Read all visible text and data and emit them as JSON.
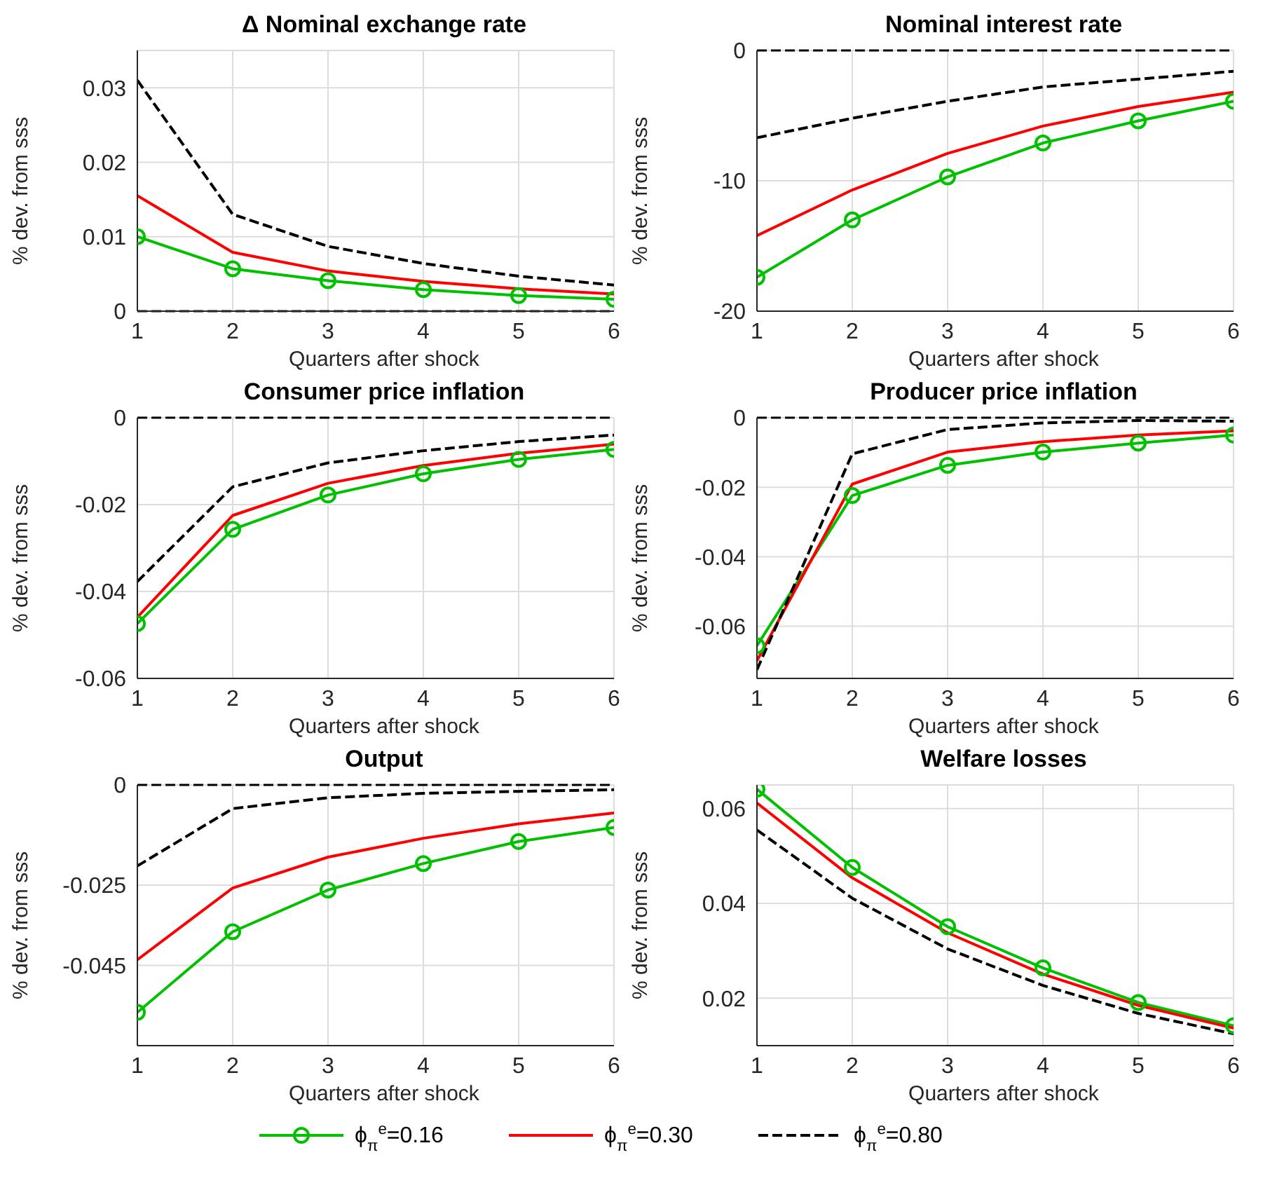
{
  "chart_data": [
    {
      "type": "line",
      "title": "Δ Nominal exchange rate",
      "xlabel": "Quarters after shock",
      "ylabel": "% dev. from sss",
      "x": [
        1,
        2,
        3,
        4,
        5,
        6
      ],
      "xlim": [
        1,
        6
      ],
      "xticks": [
        1,
        2,
        3,
        4,
        5,
        6
      ],
      "ylim": [
        0,
        0.035
      ],
      "yticks": [
        0,
        0.01,
        0.02,
        0.03
      ],
      "grid": true,
      "ref_lines": [
        {
          "axis": "y",
          "value": 0,
          "color": "#000000",
          "line_style": "dashed"
        }
      ],
      "series": [
        {
          "color": "#00c000",
          "marker": "circle",
          "line_style": "solid",
          "values": [
            0.01,
            0.0057,
            0.0041,
            0.0029,
            0.0021,
            0.0016
          ]
        },
        {
          "color": "#ff0000",
          "marker": "none",
          "line_style": "solid",
          "values": [
            0.0155,
            0.0079,
            0.0054,
            0.004,
            0.003,
            0.0023
          ]
        },
        {
          "color": "#000000",
          "marker": "none",
          "line_style": "dashed",
          "values": [
            0.031,
            0.013,
            0.0087,
            0.0064,
            0.0047,
            0.0035
          ]
        }
      ]
    },
    {
      "type": "line",
      "title": "Nominal interest rate",
      "xlabel": "Quarters after shock",
      "ylabel": "% dev. from sss",
      "x": [
        1,
        2,
        3,
        4,
        5,
        6
      ],
      "xlim": [
        1,
        6
      ],
      "xticks": [
        1,
        2,
        3,
        4,
        5,
        6
      ],
      "ylim": [
        -20,
        0
      ],
      "yticks": [
        -20,
        -10,
        0
      ],
      "grid": true,
      "ref_lines": [
        {
          "axis": "y",
          "value": 0,
          "color": "#000000",
          "line_style": "dashed"
        }
      ],
      "series": [
        {
          "color": "#00c000",
          "marker": "circle",
          "line_style": "solid",
          "values": [
            -17.4,
            -13.0,
            -9.7,
            -7.1,
            -5.4,
            -3.9
          ]
        },
        {
          "color": "#ff0000",
          "marker": "none",
          "line_style": "solid",
          "values": [
            -14.2,
            -10.7,
            -7.9,
            -5.8,
            -4.3,
            -3.2
          ]
        },
        {
          "color": "#000000",
          "marker": "none",
          "line_style": "dashed",
          "values": [
            -6.7,
            -5.2,
            -3.9,
            -2.8,
            -2.2,
            -1.6
          ]
        }
      ]
    },
    {
      "type": "line",
      "title": "Consumer price inflation",
      "xlabel": "Quarters after shock",
      "ylabel": "% dev. from sss",
      "x": [
        1,
        2,
        3,
        4,
        5,
        6
      ],
      "xlim": [
        1,
        6
      ],
      "xticks": [
        1,
        2,
        3,
        4,
        5,
        6
      ],
      "ylim": [
        -0.06,
        0
      ],
      "yticks": [
        -0.06,
        -0.04,
        -0.02,
        0
      ],
      "grid": true,
      "ref_lines": [
        {
          "axis": "y",
          "value": 0,
          "color": "#000000",
          "line_style": "dashed"
        }
      ],
      "series": [
        {
          "color": "#00c000",
          "marker": "circle",
          "line_style": "solid",
          "values": [
            -0.0474,
            -0.0257,
            -0.0178,
            -0.0129,
            -0.0096,
            -0.0073
          ]
        },
        {
          "color": "#ff0000",
          "marker": "none",
          "line_style": "solid",
          "values": [
            -0.0459,
            -0.0225,
            -0.0151,
            -0.011,
            -0.0082,
            -0.0061
          ]
        },
        {
          "color": "#000000",
          "marker": "none",
          "line_style": "dashed",
          "values": [
            -0.0377,
            -0.0159,
            -0.0104,
            -0.0076,
            -0.0055,
            -0.004
          ]
        }
      ]
    },
    {
      "type": "line",
      "title": "Producer price inflation",
      "xlabel": "Quarters after shock",
      "ylabel": "% dev. from sss",
      "x": [
        1,
        2,
        3,
        4,
        5,
        6
      ],
      "xlim": [
        1,
        6
      ],
      "xticks": [
        1,
        2,
        3,
        4,
        5,
        6
      ],
      "ylim": [
        -0.075,
        0
      ],
      "yticks": [
        -0.06,
        -0.04,
        -0.02,
        0
      ],
      "grid": true,
      "ref_lines": [
        {
          "axis": "y",
          "value": 0,
          "color": "#000000",
          "line_style": "dashed"
        }
      ],
      "series": [
        {
          "color": "#00c000",
          "marker": "circle",
          "line_style": "solid",
          "values": [
            -0.0656,
            -0.0224,
            -0.0137,
            -0.0099,
            -0.0073,
            -0.005
          ]
        },
        {
          "color": "#ff0000",
          "marker": "none",
          "line_style": "solid",
          "values": [
            -0.0699,
            -0.0191,
            -0.0099,
            -0.0069,
            -0.005,
            -0.0038
          ]
        },
        {
          "color": "#000000",
          "marker": "none",
          "line_style": "dashed",
          "values": [
            -0.0725,
            -0.0104,
            -0.0034,
            -0.0015,
            -0.0008,
            -0.001
          ]
        }
      ]
    },
    {
      "type": "line",
      "title": "Output",
      "xlabel": "Quarters after shock",
      "ylabel": "% dev. from sss",
      "x": [
        1,
        2,
        3,
        4,
        5,
        6
      ],
      "xlim": [
        1,
        6
      ],
      "xticks": [
        1,
        2,
        3,
        4,
        5,
        6
      ],
      "ylim": [
        -0.065,
        0
      ],
      "yticks": [
        -0.045,
        -0.025,
        0
      ],
      "grid": true,
      "ref_lines": [
        {
          "axis": "y",
          "value": 0,
          "color": "#000000",
          "line_style": "dashed"
        }
      ],
      "series": [
        {
          "color": "#00c000",
          "marker": "circle",
          "line_style": "solid",
          "values": [
            -0.0567,
            -0.0366,
            -0.0262,
            -0.0196,
            -0.0141,
            -0.0106
          ]
        },
        {
          "color": "#ff0000",
          "marker": "none",
          "line_style": "solid",
          "values": [
            -0.0436,
            -0.0257,
            -0.018,
            -0.0133,
            -0.0097,
            -0.007
          ]
        },
        {
          "color": "#000000",
          "marker": "none",
          "line_style": "dashed",
          "values": [
            -0.0202,
            -0.0059,
            -0.0032,
            -0.0021,
            -0.0016,
            -0.0012
          ]
        }
      ]
    },
    {
      "type": "line",
      "title": "Welfare losses",
      "xlabel": "Quarters after shock",
      "ylabel": "% dev. from sss",
      "x": [
        1,
        2,
        3,
        4,
        5,
        6
      ],
      "xlim": [
        1,
        6
      ],
      "xticks": [
        1,
        2,
        3,
        4,
        5,
        6
      ],
      "ylim": [
        0.01,
        0.065
      ],
      "yticks": [
        0.02,
        0.04,
        0.06
      ],
      "grid": true,
      "legend": "bottom",
      "series": [
        {
          "name": "ϕ$_{π}$$^{e}$=0.16",
          "color": "#00c000",
          "marker": "circle",
          "line_style": "solid",
          "values": [
            0.0641,
            0.0476,
            0.0351,
            0.0264,
            0.0191,
            0.0142
          ]
        },
        {
          "name": "ϕ$_{π}$$^{e}$=0.30",
          "color": "#ff0000",
          "marker": "none",
          "line_style": "solid",
          "values": [
            0.0612,
            0.0454,
            0.0338,
            0.0251,
            0.0185,
            0.0137
          ]
        },
        {
          "name": "ϕ$_{π}$$^{e}$=0.80",
          "color": "#000000",
          "marker": "none",
          "line_style": "dashed",
          "values": [
            0.0555,
            0.0411,
            0.0304,
            0.0227,
            0.0168,
            0.0125
          ]
        }
      ]
    }
  ]
}
